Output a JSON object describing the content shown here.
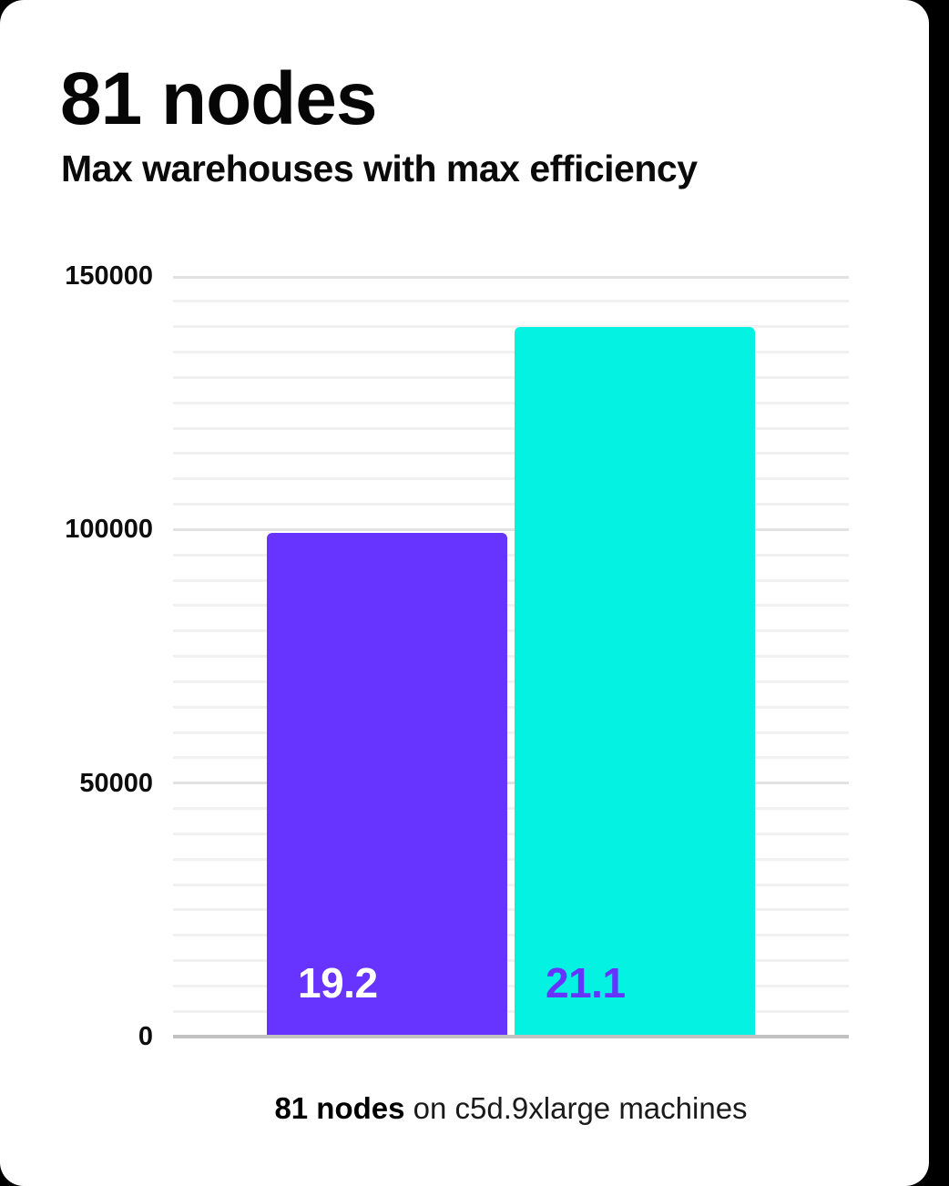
{
  "header": {
    "title": "81 nodes",
    "subtitle": "Max warehouses with max efficiency"
  },
  "chart_data": {
    "type": "bar",
    "title": "81 nodes",
    "subtitle": "Max warehouses with max efficiency",
    "categories": [
      "19.2",
      "21.1"
    ],
    "values": [
      99400,
      140000
    ],
    "series": [
      {
        "name": "19.2",
        "value": 99400,
        "color": "#6633ff",
        "label_color": "#ffffff"
      },
      {
        "name": "21.1",
        "value": 140000,
        "color": "#04f2e2",
        "label_color": "#6633ff"
      }
    ],
    "xlabel": "",
    "ylabel": "",
    "ylim": [
      0,
      150000
    ],
    "yticks": [
      0,
      50000,
      100000,
      150000
    ],
    "ytick_labels": [
      "0",
      "50000",
      "100000",
      "150000"
    ],
    "minor_grid_step": 5000,
    "grid": "horizontal-minor-and-major",
    "legend": "none",
    "caption": "81 nodes on c5d.9xlarge machines"
  },
  "caption": {
    "bold": "81 nodes",
    "rest": " on c5d.9xlarge machines"
  },
  "colors": {
    "background": "#000000",
    "card": "#ffffff",
    "bar_19_2": "#6633ff",
    "bar_21_1": "#04f2e2",
    "bar_label_19_2": "#ffffff",
    "bar_label_21_1": "#6633ff",
    "major_gridline": "#e2e2e2",
    "minor_gridline": "#f1f1f1",
    "axis_line": "#c2c2c2",
    "text": "#060606"
  }
}
